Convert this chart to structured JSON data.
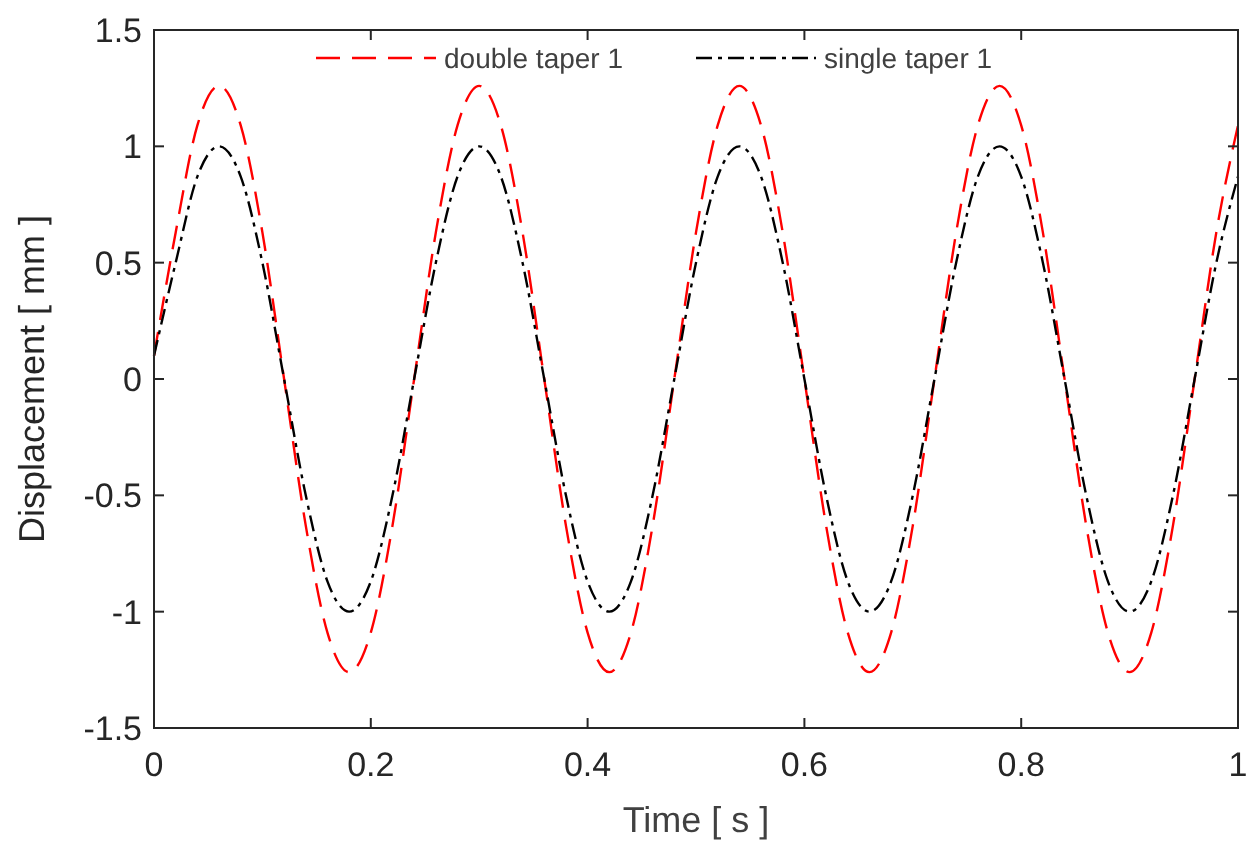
{
  "chart_data": {
    "type": "line",
    "xlabel": "Time [ s ]",
    "ylabel": "Displacement [ mm ]",
    "x": [
      0,
      0.02,
      0.04,
      0.06,
      0.08,
      0.1,
      0.12,
      0.14,
      0.16,
      0.18,
      0.2,
      0.22,
      0.24,
      0.26,
      0.28,
      0.3,
      0.32,
      0.34,
      0.36,
      0.38,
      0.4,
      0.42,
      0.44,
      0.46,
      0.48,
      0.5,
      0.52,
      0.54,
      0.56,
      0.58,
      0.6,
      0.62,
      0.64,
      0.66,
      0.68,
      0.7,
      0.72,
      0.74,
      0.76,
      0.78,
      0.8,
      0.82,
      0.84,
      0.86,
      0.88,
      0.9,
      0.92,
      0.94,
      0.96,
      0.98,
      1
    ],
    "series": [
      {
        "name": "double taper 1",
        "color": "#ff0000",
        "line_style": "dashed",
        "values": [
          0.1,
          0.63,
          1.09,
          1.26,
          1.09,
          0.63,
          0,
          -0.63,
          -1.09,
          -1.26,
          -1.09,
          -0.63,
          0,
          0.63,
          1.09,
          1.26,
          1.09,
          0.63,
          0,
          -0.63,
          -1.09,
          -1.26,
          -1.09,
          -0.63,
          0,
          0.63,
          1.09,
          1.26,
          1.09,
          0.63,
          0,
          -0.63,
          -1.09,
          -1.26,
          -1.09,
          -0.63,
          0,
          0.63,
          1.09,
          1.26,
          1.09,
          0.63,
          0,
          -0.63,
          -1.09,
          -1.26,
          -1.09,
          -0.63,
          0,
          0.63,
          1.09
        ]
      },
      {
        "name": "single taper 1",
        "color": "#000000",
        "line_style": "dashdot",
        "values": [
          0.1,
          0.5,
          0.87,
          1,
          0.87,
          0.5,
          0,
          -0.5,
          -0.87,
          -1,
          -0.87,
          -0.5,
          0,
          0.5,
          0.87,
          1,
          0.87,
          0.5,
          0,
          -0.5,
          -0.87,
          -1,
          -0.87,
          -0.5,
          0,
          0.5,
          0.87,
          1,
          0.87,
          0.5,
          0,
          -0.5,
          -0.87,
          -1,
          -0.87,
          -0.5,
          0,
          0.5,
          0.87,
          1,
          0.87,
          0.5,
          0,
          -0.5,
          -0.87,
          -1,
          -0.87,
          -0.5,
          0,
          0.5,
          0.87
        ]
      }
    ],
    "xlim": [
      0,
      1
    ],
    "xticks": [
      0,
      0.2,
      0.4,
      0.6,
      0.8,
      1
    ],
    "ylim": [
      -1.5,
      1.5
    ],
    "yticks": [
      -1.5,
      -1,
      -0.5,
      0,
      0.5,
      1,
      1.5
    ],
    "grid": false,
    "legend": "top"
  }
}
